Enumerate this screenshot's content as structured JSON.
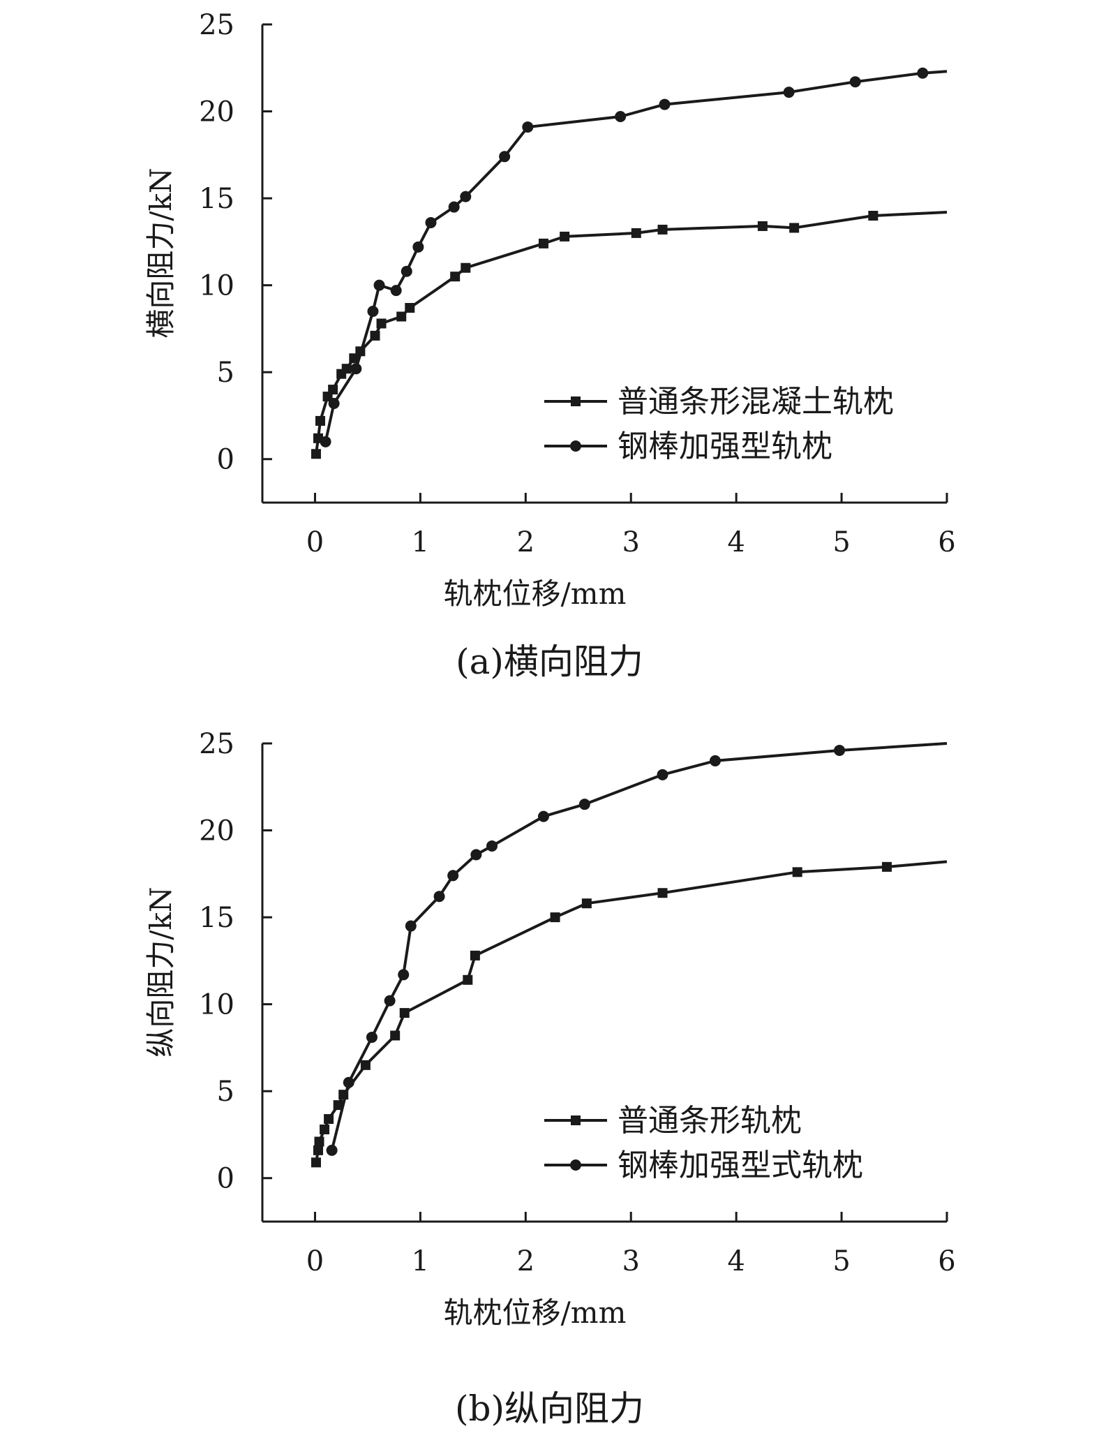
{
  "chart_data": [
    {
      "type": "line",
      "caption": "(a)横向阻力",
      "xlabel": "轨枕位移/mm",
      "ylabel": "横向阻力/kN",
      "xlim": [
        -0.5,
        6
      ],
      "ylim": [
        -2.5,
        25
      ],
      "xticks": [
        0,
        1,
        2,
        3,
        4,
        5,
        6
      ],
      "yticks": [
        0,
        5,
        10,
        15,
        20,
        25
      ],
      "grid": false,
      "legend": "bottom-right",
      "series": [
        {
          "name": "普通条形混凝土轨枕",
          "marker": "square",
          "x": [
            0.01,
            0.03,
            0.05,
            0.12,
            0.17,
            0.25,
            0.3,
            0.37,
            0.43,
            0.57,
            0.63,
            0.82,
            0.9,
            1.33,
            1.43,
            2.17,
            2.37,
            3.05,
            3.3,
            4.25,
            4.55,
            5.3,
            6.0
          ],
          "y": [
            0.3,
            1.2,
            2.2,
            3.6,
            4.0,
            4.9,
            5.2,
            5.8,
            6.2,
            7.1,
            7.8,
            8.2,
            8.7,
            10.5,
            11.0,
            12.4,
            12.8,
            13.0,
            13.2,
            13.4,
            13.3,
            14.0,
            14.2
          ]
        },
        {
          "name": "钢棒加强型轨枕",
          "marker": "circle",
          "x": [
            0.1,
            0.18,
            0.39,
            0.55,
            0.61,
            0.77,
            0.87,
            0.98,
            1.1,
            1.32,
            1.43,
            1.8,
            2.02,
            2.9,
            3.32,
            4.5,
            5.13,
            5.77,
            6.0
          ],
          "y": [
            1.0,
            3.2,
            5.2,
            8.5,
            10.0,
            9.7,
            10.8,
            12.2,
            13.6,
            14.5,
            15.1,
            17.4,
            19.1,
            19.7,
            20.4,
            21.1,
            21.7,
            22.2,
            22.3
          ]
        }
      ]
    },
    {
      "type": "line",
      "caption": "(b)纵向阻力",
      "xlabel": "轨枕位移/mm",
      "ylabel": "纵向阻力/kN",
      "xlim": [
        -0.5,
        6
      ],
      "ylim": [
        -2.5,
        25
      ],
      "xticks": [
        0,
        1,
        2,
        3,
        4,
        5,
        6
      ],
      "yticks": [
        0,
        5,
        10,
        15,
        20,
        25
      ],
      "grid": false,
      "legend": "bottom-right",
      "series": [
        {
          "name": "普通条形轨枕",
          "marker": "square",
          "x": [
            0.01,
            0.03,
            0.04,
            0.09,
            0.13,
            0.22,
            0.27,
            0.48,
            0.76,
            0.85,
            1.45,
            1.52,
            2.28,
            2.58,
            3.3,
            4.58,
            5.43,
            6.0
          ],
          "y": [
            0.9,
            1.6,
            2.1,
            2.8,
            3.4,
            4.2,
            4.8,
            6.5,
            8.2,
            9.5,
            11.4,
            12.8,
            15.0,
            15.8,
            16.4,
            17.6,
            17.9,
            18.2
          ]
        },
        {
          "name": "钢棒加强型式轨枕",
          "marker": "circle",
          "x": [
            0.16,
            0.32,
            0.54,
            0.71,
            0.84,
            0.91,
            1.18,
            1.31,
            1.53,
            1.68,
            2.17,
            2.56,
            3.3,
            3.8,
            4.98,
            6.0
          ],
          "y": [
            1.6,
            5.5,
            8.1,
            10.2,
            11.7,
            14.5,
            16.2,
            17.4,
            18.6,
            19.1,
            20.8,
            21.5,
            23.2,
            24.0,
            24.6,
            25.0
          ]
        }
      ]
    }
  ]
}
